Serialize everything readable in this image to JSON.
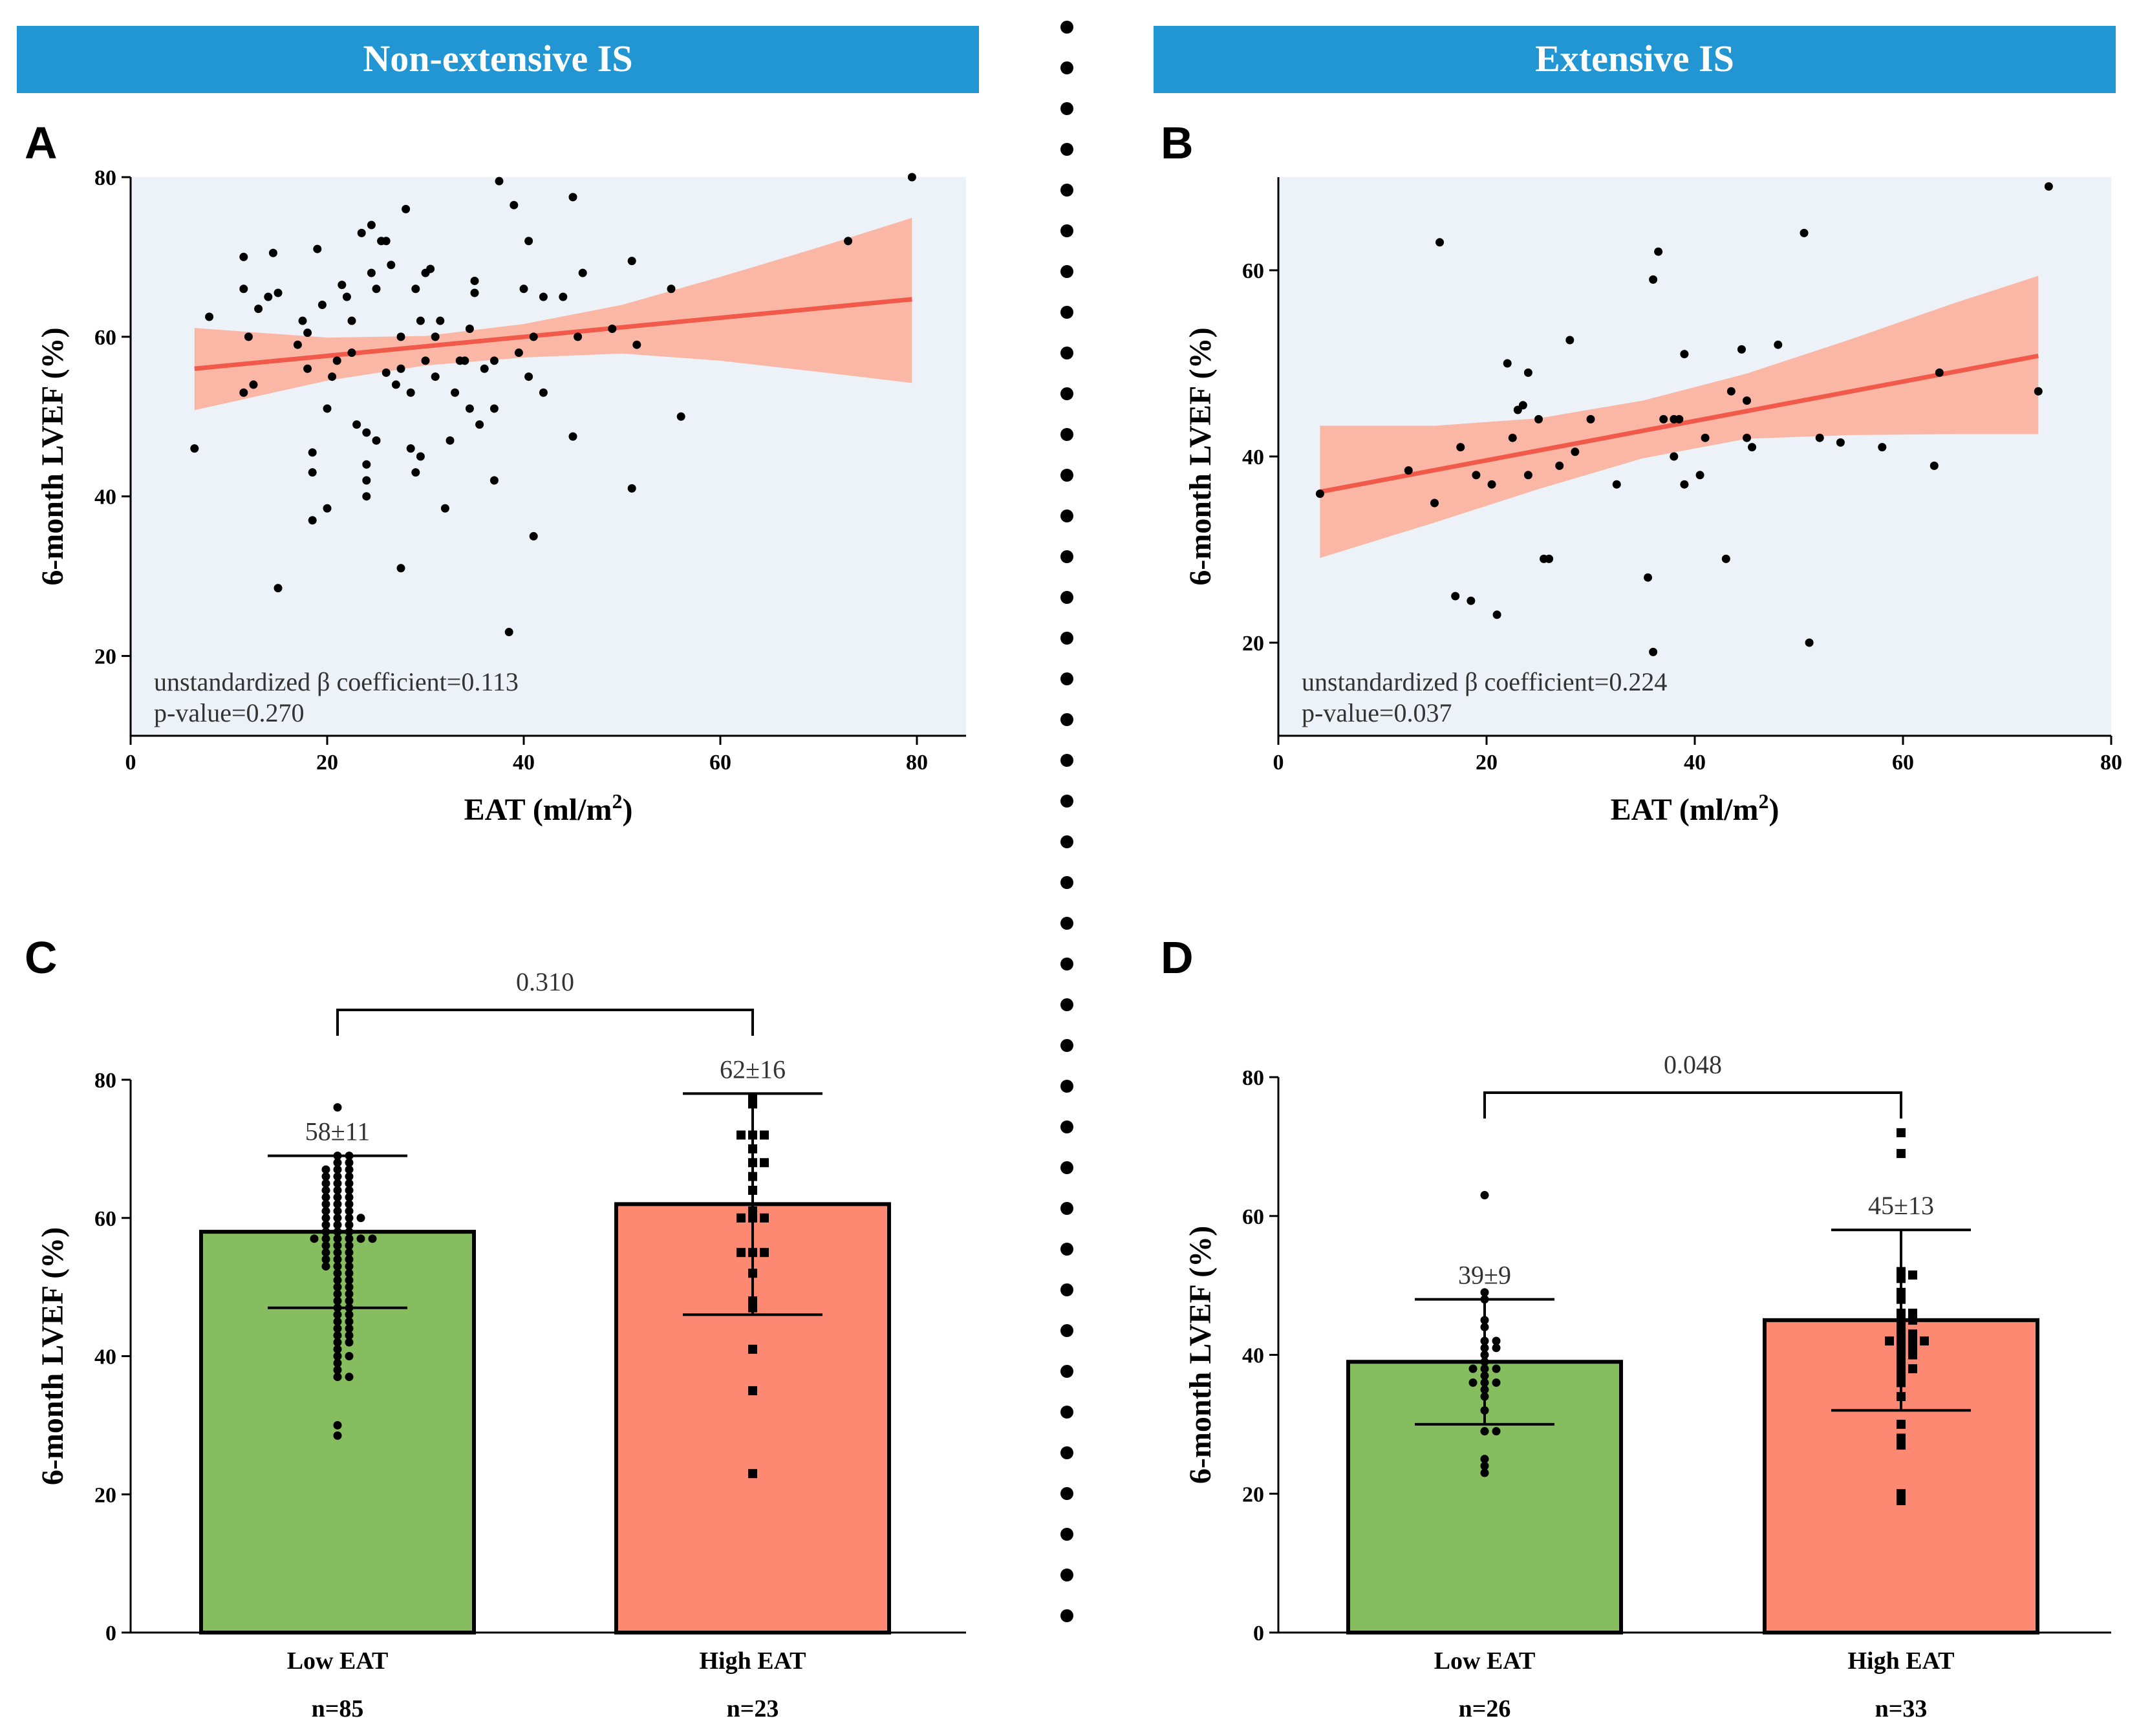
{
  "headers": {
    "left": "Non-extensive IS",
    "right": "Extensive IS"
  },
  "colors": {
    "banner": "#2196d3",
    "plot_bg": "#edf2f8",
    "regression_line": "#f15a4a",
    "ci_band": "#fbb7a6",
    "bar_low": "#86bd5f",
    "bar_high": "#fe8972",
    "points": "#000000"
  },
  "chart_data": [
    {
      "panel": "A",
      "type": "scatter",
      "xlabel": "EAT (ml/m",
      "xlabel_sup": "2",
      "xlabel_end": ")",
      "ylabel": "6-month LVEF (%)",
      "xlim": [
        0,
        85
      ],
      "ylim": [
        10,
        80
      ],
      "xticks": [
        0,
        20,
        40,
        60,
        80
      ],
      "yticks": [
        20,
        40,
        60,
        80
      ],
      "annotation_lines": [
        "unstandardized β coefficient=0.113",
        "p-value=0.270"
      ],
      "regression": {
        "x": [
          6.5,
          79.5
        ],
        "y": [
          56.0,
          64.7
        ]
      },
      "ci_band": {
        "x": [
          6.5,
          20,
          30,
          40,
          50,
          60,
          70,
          79.5
        ],
        "upper": [
          61.1,
          59.9,
          60.1,
          61.6,
          64.0,
          67.5,
          71.2,
          74.9
        ],
        "lower": [
          50.8,
          54.5,
          56.4,
          57.4,
          57.9,
          57.0,
          55.6,
          54.2
        ]
      },
      "points": [
        [
          6.5,
          46
        ],
        [
          8,
          62.5
        ],
        [
          11.5,
          53
        ],
        [
          11.5,
          66
        ],
        [
          11.5,
          70
        ],
        [
          12,
          60
        ],
        [
          12.5,
          54
        ],
        [
          13,
          63.5
        ],
        [
          14,
          65
        ],
        [
          14.5,
          70.5
        ],
        [
          15,
          28.5
        ],
        [
          15,
          65.5
        ],
        [
          17,
          59
        ],
        [
          17.5,
          62
        ],
        [
          18,
          56
        ],
        [
          18,
          60.5
        ],
        [
          18.5,
          43
        ],
        [
          18.5,
          45.5
        ],
        [
          18.5,
          37
        ],
        [
          19,
          71
        ],
        [
          19.5,
          64
        ],
        [
          20,
          38.5
        ],
        [
          20,
          51
        ],
        [
          20.5,
          55
        ],
        [
          21,
          57
        ],
        [
          21.5,
          66.5
        ],
        [
          22,
          65
        ],
        [
          22.5,
          58
        ],
        [
          22.5,
          62
        ],
        [
          23,
          49
        ],
        [
          23.5,
          73
        ],
        [
          24,
          42
        ],
        [
          24,
          44
        ],
        [
          24,
          40
        ],
        [
          24,
          48
        ],
        [
          24.5,
          74
        ],
        [
          24.5,
          68
        ],
        [
          25,
          47
        ],
        [
          25,
          66
        ],
        [
          25.5,
          72
        ],
        [
          26,
          72
        ],
        [
          26,
          55.5
        ],
        [
          26.5,
          69
        ],
        [
          27,
          54
        ],
        [
          27.5,
          60
        ],
        [
          27.5,
          56
        ],
        [
          28,
          76
        ],
        [
          27.5,
          31
        ],
        [
          28.5,
          53
        ],
        [
          28.5,
          46
        ],
        [
          29,
          66
        ],
        [
          29,
          43
        ],
        [
          29.5,
          62
        ],
        [
          29.5,
          45
        ],
        [
          30,
          68
        ],
        [
          30,
          57
        ],
        [
          30.5,
          68.5
        ],
        [
          31,
          60
        ],
        [
          31,
          55
        ],
        [
          31.5,
          62
        ],
        [
          32,
          38.5
        ],
        [
          32.5,
          47
        ],
        [
          33,
          53
        ],
        [
          33.5,
          57
        ],
        [
          34,
          57
        ],
        [
          34.5,
          61
        ],
        [
          34.5,
          51
        ],
        [
          35,
          65.5
        ],
        [
          35,
          67
        ],
        [
          35.5,
          49
        ],
        [
          36,
          56
        ],
        [
          37,
          57
        ],
        [
          37,
          42
        ],
        [
          37,
          51
        ],
        [
          37.5,
          79.5
        ],
        [
          39,
          76.5
        ],
        [
          38.5,
          23
        ],
        [
          39.5,
          58
        ],
        [
          40,
          66
        ],
        [
          40.5,
          72
        ],
        [
          40.5,
          55
        ],
        [
          41,
          60
        ],
        [
          41,
          35
        ],
        [
          42,
          53
        ],
        [
          42,
          65
        ],
        [
          44,
          65
        ],
        [
          45,
          47.5
        ],
        [
          45,
          77.5
        ],
        [
          45.5,
          60
        ],
        [
          46,
          68
        ],
        [
          49,
          61
        ],
        [
          51,
          69.5
        ],
        [
          51,
          41
        ],
        [
          51.5,
          59
        ],
        [
          55,
          66
        ],
        [
          56,
          50
        ],
        [
          73,
          72
        ],
        [
          79.5,
          80
        ]
      ]
    },
    {
      "panel": "B",
      "type": "scatter",
      "xlabel": "EAT (ml/m",
      "xlabel_sup": "2",
      "xlabel_end": ")",
      "ylabel": "6-month LVEF (%)",
      "xlim": [
        0,
        80
      ],
      "ylim": [
        10,
        70
      ],
      "xticks": [
        0,
        20,
        40,
        60,
        80
      ],
      "yticks": [
        20,
        40,
        60
      ],
      "annotation_lines": [
        "unstandardized β coefficient=0.224",
        "p-value=0.037"
      ],
      "regression": {
        "x": [
          4,
          73
        ],
        "y": [
          36.2,
          50.8
        ]
      },
      "ci_band": {
        "x": [
          4,
          15,
          25,
          35,
          45,
          55,
          65,
          73
        ],
        "upper": [
          43.3,
          43.3,
          44.1,
          46.0,
          48.9,
          52.6,
          56.5,
          59.4
        ],
        "lower": [
          29.1,
          32.9,
          36.5,
          39.8,
          41.9,
          42.3,
          42.4,
          42.4
        ]
      },
      "points": [
        [
          4,
          36
        ],
        [
          12.5,
          38.5
        ],
        [
          15,
          35
        ],
        [
          15.5,
          63
        ],
        [
          17,
          25
        ],
        [
          17.5,
          41
        ],
        [
          18.5,
          24.5
        ],
        [
          19,
          38
        ],
        [
          20.5,
          37
        ],
        [
          21,
          23
        ],
        [
          22,
          50
        ],
        [
          22.5,
          42
        ],
        [
          23,
          45
        ],
        [
          23.5,
          45.5
        ],
        [
          24,
          49
        ],
        [
          24,
          38
        ],
        [
          25,
          44
        ],
        [
          25.5,
          29
        ],
        [
          26,
          29
        ],
        [
          27,
          39
        ],
        [
          28,
          52.5
        ],
        [
          28.5,
          40.5
        ],
        [
          30,
          44
        ],
        [
          32.5,
          37
        ],
        [
          35.5,
          27
        ],
        [
          36,
          59
        ],
        [
          36.5,
          62
        ],
        [
          36,
          19
        ],
        [
          37,
          44
        ],
        [
          38,
          44
        ],
        [
          38,
          40
        ],
        [
          38.5,
          44
        ],
        [
          39,
          51
        ],
        [
          39,
          37
        ],
        [
          40.5,
          38
        ],
        [
          41,
          42
        ],
        [
          43,
          29
        ],
        [
          43.5,
          47
        ],
        [
          44.5,
          51.5
        ],
        [
          45,
          42
        ],
        [
          45,
          46
        ],
        [
          45.5,
          41
        ],
        [
          48,
          52
        ],
        [
          50.5,
          64
        ],
        [
          51,
          20
        ],
        [
          52,
          42
        ],
        [
          54,
          41.5
        ],
        [
          58,
          41
        ],
        [
          63,
          39
        ],
        [
          63.5,
          49
        ],
        [
          73,
          47
        ],
        [
          74,
          69
        ]
      ]
    },
    {
      "panel": "C",
      "type": "bar",
      "ylabel": "6-month LVEF (%)",
      "ylim": [
        0,
        80
      ],
      "yticks": [
        0,
        20,
        40,
        60,
        80
      ],
      "categories": [
        "Low EAT",
        "High EAT"
      ],
      "n_labels": [
        "n=85",
        "n=23"
      ],
      "values": [
        58,
        62
      ],
      "sd": [
        11,
        16
      ],
      "value_labels": [
        "58±11",
        "62±16"
      ],
      "p_value": "0.310",
      "points": [
        [
          76,
          69,
          69,
          68,
          68,
          67,
          67,
          67,
          66,
          66,
          66,
          65,
          65,
          65,
          64,
          64,
          64,
          63,
          63,
          63,
          62,
          62,
          62,
          61,
          61,
          61,
          60,
          60,
          60,
          60,
          59,
          59,
          59,
          58,
          58,
          58,
          57,
          57,
          57,
          57,
          57,
          57,
          56,
          56,
          56,
          55,
          55,
          55,
          54,
          54,
          54,
          53,
          53,
          53,
          52,
          52,
          51,
          51,
          50,
          50,
          49,
          49,
          48,
          48,
          47,
          47,
          46,
          46,
          45,
          45,
          44,
          44,
          43,
          43,
          42,
          42,
          41,
          40,
          40,
          39,
          38,
          37,
          37,
          30,
          28.5
        ],
        [
          77.5,
          76.5,
          72,
          72,
          72,
          70,
          68,
          68,
          66,
          61,
          60,
          60,
          60,
          55,
          55,
          55,
          52,
          48,
          47,
          41,
          35,
          23,
          64
        ]
      ]
    },
    {
      "panel": "D",
      "type": "bar",
      "ylabel": "6-month LVEF (%)",
      "ylim": [
        0,
        80
      ],
      "yticks": [
        0,
        20,
        40,
        60,
        80
      ],
      "categories": [
        "Low EAT",
        "High EAT"
      ],
      "n_labels": [
        "n=26",
        "n=33"
      ],
      "values": [
        39,
        45
      ],
      "sd": [
        9,
        13
      ],
      "value_labels": [
        "39±9",
        "45±13"
      ],
      "p_value": "0.048",
      "points": [
        [
          63,
          49,
          48,
          45,
          44,
          42,
          41,
          41,
          40,
          39,
          38,
          38,
          38,
          37,
          36,
          36,
          36,
          35,
          34,
          32,
          29,
          29,
          25,
          24,
          23,
          42
        ],
        [
          72,
          69,
          52,
          51.5,
          51,
          49,
          48,
          46,
          45,
          45,
          44,
          43,
          43,
          42,
          42,
          42,
          42,
          41,
          41,
          40,
          40,
          39,
          38,
          38,
          37,
          36,
          34,
          30,
          28,
          27,
          20,
          19,
          46
        ]
      ]
    }
  ]
}
